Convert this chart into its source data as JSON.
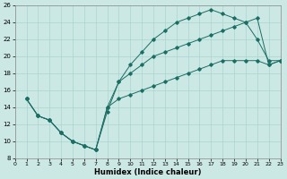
{
  "xlabel": "Humidex (Indice chaleur)",
  "bg_color": "#cce8e4",
  "grid_major_color": "#aad4cf",
  "grid_minor_color": "#bbddd9",
  "line_color": "#1a6e64",
  "xlim": [
    0,
    23
  ],
  "ylim": [
    8,
    26
  ],
  "xticks": [
    0,
    1,
    2,
    3,
    4,
    5,
    6,
    7,
    8,
    9,
    10,
    11,
    12,
    13,
    14,
    15,
    16,
    17,
    18,
    19,
    20,
    21,
    22,
    23
  ],
  "yticks": [
    8,
    10,
    12,
    14,
    16,
    18,
    20,
    22,
    24,
    26
  ],
  "line1_x": [
    1,
    2,
    3,
    4,
    5,
    6,
    7,
    8,
    9,
    10,
    11,
    12,
    13,
    14,
    15,
    16,
    17,
    18,
    19,
    20,
    21,
    22,
    23
  ],
  "line1_y": [
    15,
    13,
    12.5,
    11,
    10,
    9.5,
    9,
    13.5,
    17,
    19,
    20.5,
    22,
    23,
    24,
    24.5,
    25,
    25.5,
    25,
    24.5,
    24,
    22,
    19.5,
    19.5
  ],
  "line2_x": [
    1,
    2,
    3,
    4,
    5,
    6,
    7,
    8,
    9,
    10,
    11,
    12,
    13,
    14,
    15,
    16,
    17,
    18,
    19,
    20,
    21,
    22,
    23
  ],
  "line2_y": [
    15,
    13,
    12.5,
    11,
    10,
    9.5,
    9,
    14,
    17,
    18,
    19,
    20,
    20.5,
    21,
    21.5,
    22,
    22.5,
    23,
    23.5,
    24,
    24.5,
    19,
    19.5
  ],
  "line3_x": [
    1,
    2,
    3,
    4,
    5,
    6,
    7,
    8,
    9,
    10,
    11,
    12,
    13,
    14,
    15,
    16,
    17,
    18,
    19,
    20,
    21,
    22,
    23
  ],
  "line3_y": [
    15,
    13,
    12.5,
    11,
    10,
    9.5,
    9,
    14,
    15,
    15.5,
    16,
    16.5,
    17,
    17.5,
    18,
    18.5,
    19,
    19.5,
    19.5,
    19.5,
    19.5,
    19,
    19.5
  ]
}
